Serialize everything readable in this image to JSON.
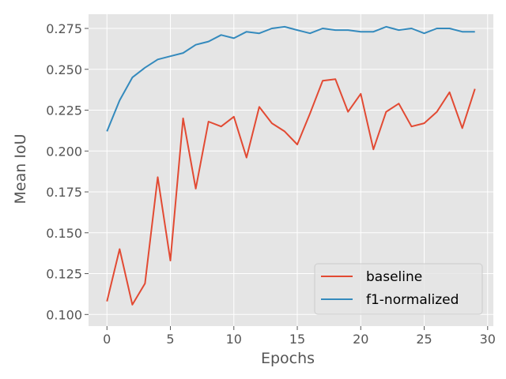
{
  "chart_data": {
    "type": "line",
    "xlabel": "Epochs",
    "ylabel": "Mean IoU",
    "xlim": [
      -1.45,
      30.45
    ],
    "ylim": [
      0.0929,
      0.2837
    ],
    "x_ticks": [
      0,
      5,
      10,
      15,
      20,
      25,
      30
    ],
    "y_ticks": [
      0.1,
      0.125,
      0.15,
      0.175,
      0.2,
      0.225,
      0.25,
      0.275
    ],
    "x_tick_labels": [
      "0",
      "5",
      "10",
      "15",
      "20",
      "25",
      "30"
    ],
    "y_tick_labels": [
      "0.100",
      "0.125",
      "0.150",
      "0.175",
      "0.200",
      "0.225",
      "0.250",
      "0.275"
    ],
    "grid": true,
    "legend_position": "bottom-right",
    "x": [
      0,
      1,
      2,
      3,
      4,
      5,
      6,
      7,
      8,
      9,
      10,
      11,
      12,
      13,
      14,
      15,
      16,
      17,
      18,
      19,
      20,
      21,
      22,
      23,
      24,
      25,
      26,
      27,
      28,
      29
    ],
    "series": [
      {
        "name": "baseline",
        "color": "#E24A33",
        "values": [
          0.108,
          0.14,
          0.106,
          0.119,
          0.184,
          0.133,
          0.22,
          0.177,
          0.218,
          0.215,
          0.221,
          0.196,
          0.227,
          0.217,
          0.212,
          0.204,
          0.223,
          0.243,
          0.244,
          0.224,
          0.235,
          0.201,
          0.224,
          0.229,
          0.215,
          0.217,
          0.224,
          0.236,
          0.214,
          0.238
        ]
      },
      {
        "name": "f1-normalized",
        "color": "#348ABD",
        "values": [
          0.212,
          0.231,
          0.245,
          0.251,
          0.256,
          0.258,
          0.26,
          0.265,
          0.267,
          0.271,
          0.269,
          0.273,
          0.272,
          0.275,
          0.276,
          0.274,
          0.272,
          0.275,
          0.274,
          0.274,
          0.273,
          0.273,
          0.276,
          0.274,
          0.275,
          0.272,
          0.275,
          0.275,
          0.273,
          0.273
        ]
      }
    ]
  }
}
